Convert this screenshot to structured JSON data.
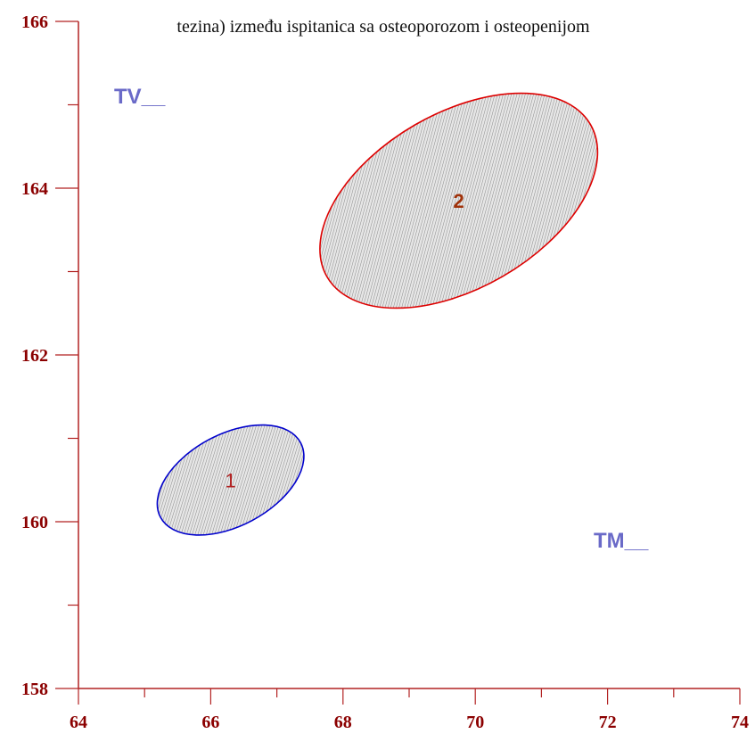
{
  "chart_data": {
    "type": "scatter",
    "title": "tezina) između ispitanica sa osteoporozom i osteopenijom",
    "xlabel": "TM__",
    "ylabel": "TV__",
    "xlim": [
      64,
      74
    ],
    "ylim": [
      158,
      166
    ],
    "x_ticks": [
      "64",
      "66",
      "68",
      "70",
      "72",
      "74"
    ],
    "y_ticks": [
      "158",
      "160",
      "162",
      "164",
      "166"
    ],
    "grid": false,
    "ellipses": [
      {
        "label": "1",
        "cx": 66.3,
        "cy": 160.5,
        "rx": 1.2,
        "ry": 0.55,
        "angle_deg": 28,
        "stroke": "#0000cc",
        "label_color": "#b22222"
      },
      {
        "label": "2",
        "cx": 69.75,
        "cy": 163.85,
        "rx": 2.3,
        "ry": 1.05,
        "angle_deg": 30,
        "stroke": "#dd0000",
        "label_color": "#a0320a"
      }
    ],
    "colors": {
      "axis": "#b22222",
      "tick_label": "#8b0000",
      "axis_label": "#6a6ac8",
      "fill": "#c9c9c9"
    }
  }
}
